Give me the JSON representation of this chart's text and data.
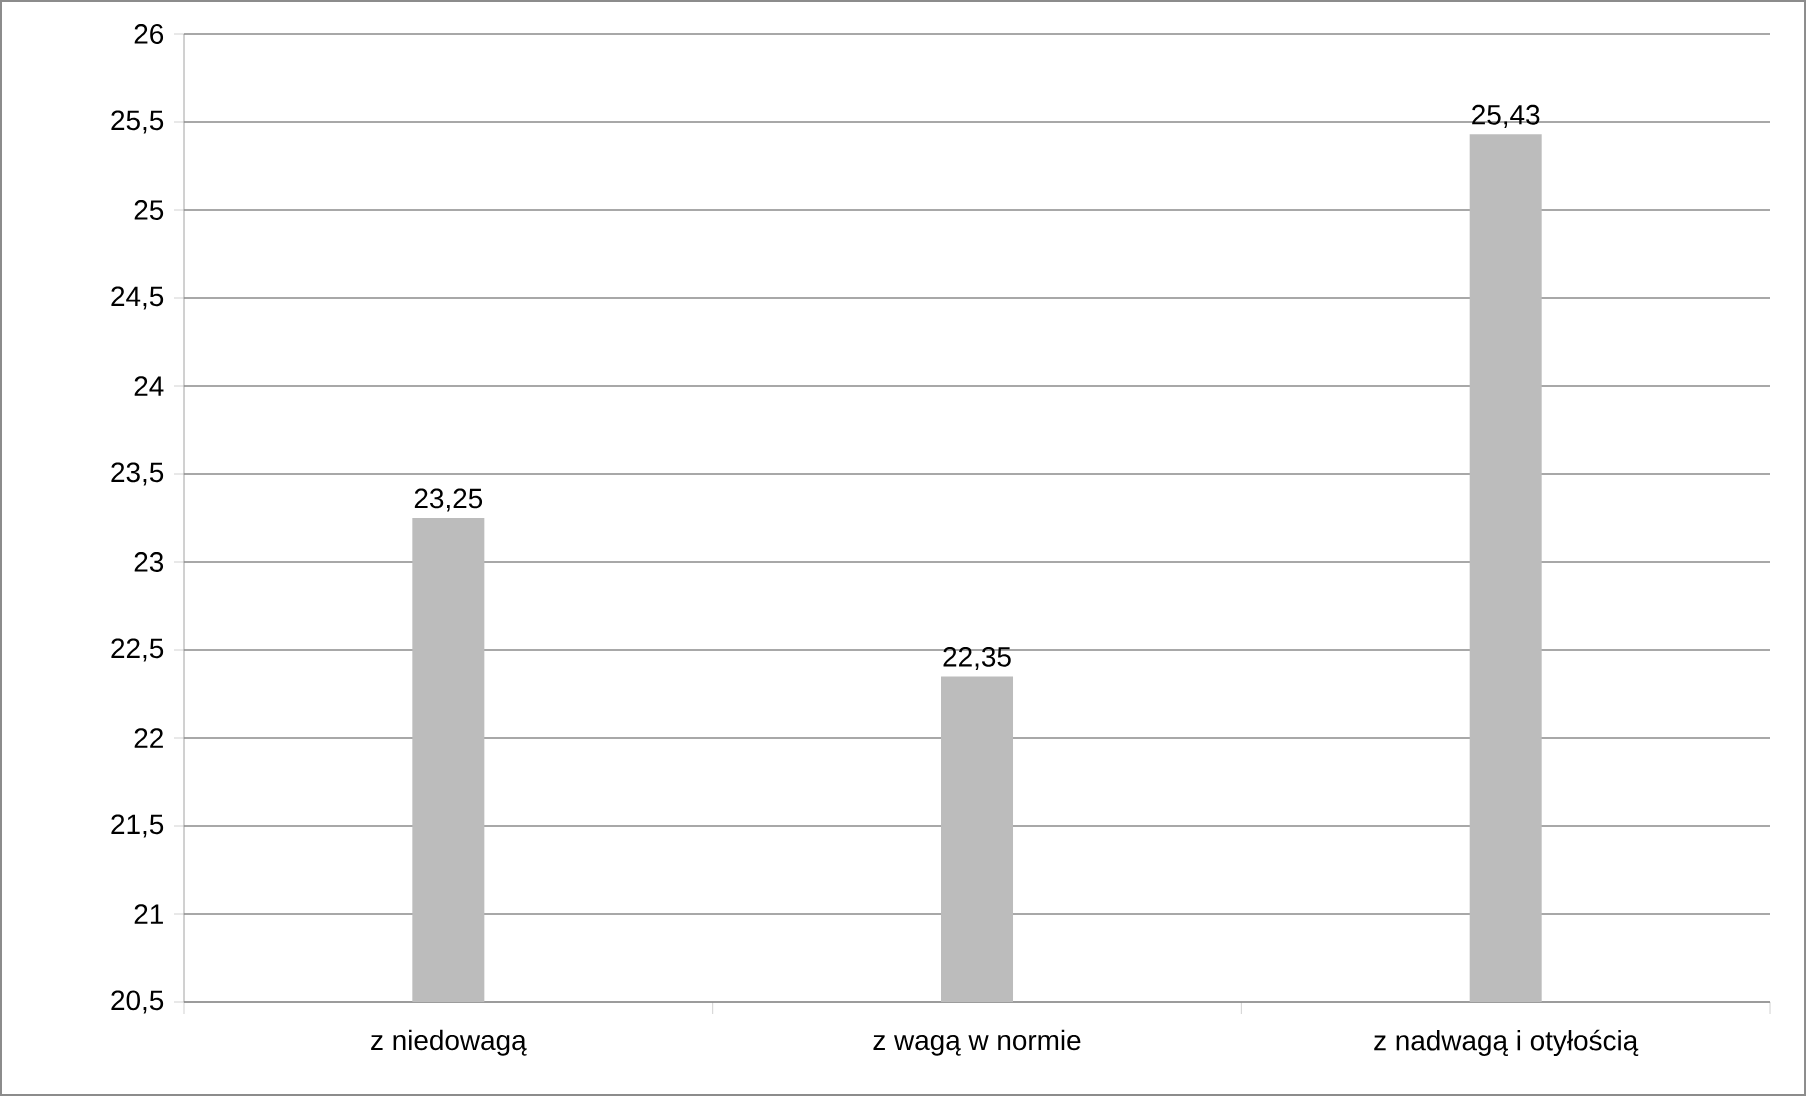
{
  "chart_data": {
    "type": "bar",
    "categories": [
      "z niedowagą",
      "z wagą w normie",
      "z nadwagą i otyłością"
    ],
    "values": [
      23.25,
      22.35,
      25.43
    ],
    "value_labels": [
      "23,25",
      "22,35",
      "25,43"
    ],
    "color": "#bcbcbc",
    "ylim": [
      20.5,
      26
    ],
    "yticks": [
      {
        "value": 20.5,
        "label": "20,5"
      },
      21,
      {
        "value": 21.5,
        "label": "21,5"
      },
      22,
      {
        "value": 22.5,
        "label": "22,5"
      },
      23,
      {
        "value": 23.5,
        "label": "23,5"
      },
      24,
      {
        "value": 24.5,
        "label": "24,5"
      },
      25,
      {
        "value": 25.5,
        "label": "25,5"
      },
      26
    ],
    "grid": "y"
  }
}
